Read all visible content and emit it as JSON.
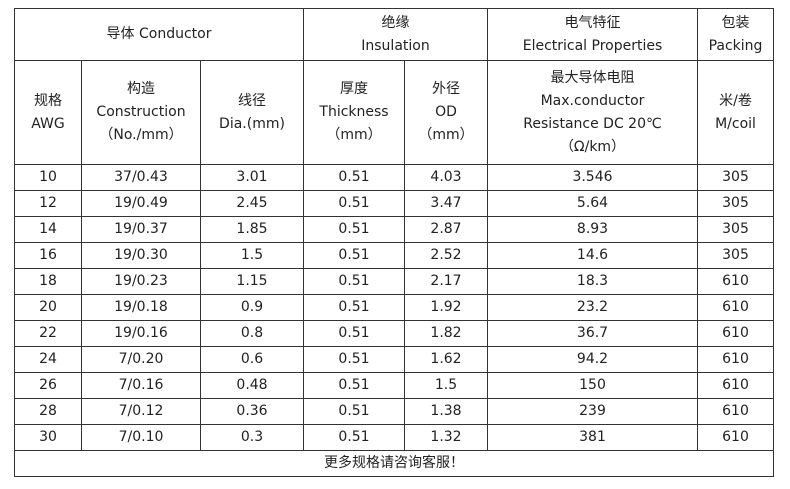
{
  "table": {
    "group_headers": [
      [
        "导体 Conductor"
      ],
      [
        "绝缘",
        "Insulation"
      ],
      [
        "电气特征",
        "Electrical Properties"
      ],
      [
        "包装",
        "Packing"
      ]
    ],
    "column_headers": [
      [
        "规格",
        "AWG"
      ],
      [
        "构造",
        "Construction",
        "（No./mm）"
      ],
      [
        "线径",
        "Dia.(mm)"
      ],
      [
        "厚度",
        "Thickness",
        "（mm）"
      ],
      [
        "外径",
        "OD",
        "（mm）"
      ],
      [
        "最大导体电阻",
        "Max.conductor",
        "Resistance DC 20℃",
        "（Ω/km）"
      ],
      [
        "米/卷",
        "M/coil"
      ]
    ],
    "rows": [
      [
        "10",
        "37/0.43",
        "3.01",
        "0.51",
        "4.03",
        "3.546",
        "305"
      ],
      [
        "12",
        "19/0.49",
        "2.45",
        "0.51",
        "3.47",
        "5.64",
        "305"
      ],
      [
        "14",
        "19/0.37",
        "1.85",
        "0.51",
        "2.87",
        "8.93",
        "305"
      ],
      [
        "16",
        "19/0.30",
        "1.5",
        "0.51",
        "2.52",
        "14.6",
        "305"
      ],
      [
        "18",
        "19/0.23",
        "1.15",
        "0.51",
        "2.17",
        "18.3",
        "610"
      ],
      [
        "20",
        "19/0.18",
        "0.9",
        "0.51",
        "1.92",
        "23.2",
        "610"
      ],
      [
        "22",
        "19/0.16",
        "0.8",
        "0.51",
        "1.82",
        "36.7",
        "610"
      ],
      [
        "24",
        "7/0.20",
        "0.6",
        "0.51",
        "1.62",
        "94.2",
        "610"
      ],
      [
        "26",
        "7/0.16",
        "0.48",
        "0.51",
        "1.5",
        "150",
        "610"
      ],
      [
        "28",
        "7/0.12",
        "0.36",
        "0.51",
        "1.38",
        "239",
        "610"
      ],
      [
        "30",
        "7/0.10",
        "0.3",
        "0.51",
        "1.32",
        "381",
        "610"
      ]
    ],
    "footer": "更多规格请咨询客服！"
  }
}
